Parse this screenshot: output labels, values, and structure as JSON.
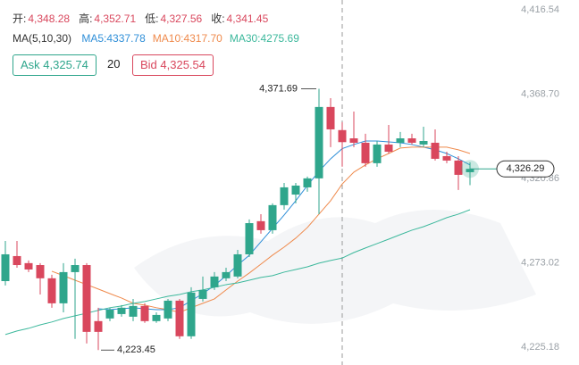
{
  "chart_data": {
    "type": "candlestick",
    "ohlc_header": [
      {
        "label": "开:",
        "value": "4,348.28"
      },
      {
        "label": "高:",
        "value": "4,352.71"
      },
      {
        "label": "低:",
        "value": "4,327.56"
      },
      {
        "label": "收:",
        "value": "4,341.45"
      }
    ],
    "ma_title": "MA(5,10,30)",
    "ask": "Ask 4,325.74",
    "quantity": "20",
    "bid": "Bid 4,325.54",
    "up_color": "#2fa68c",
    "down_color": "#d9475d",
    "candles": {
      "open": [
        4262.6,
        4276.8,
        4272.8,
        4271.7,
        4264.2,
        4250.0,
        4267.7,
        4271.7,
        4239.9,
        4241.4,
        4243.9,
        4242.4,
        4248.5,
        4239.9,
        4241.4,
        4251.5,
        4231.3,
        4252.5,
        4259.1,
        4264.2,
        4265.2,
        4277.8,
        4296.6,
        4291.5,
        4305.7,
        4311.7,
        4315.8,
        4320.9,
        4361.4,
        4348.28,
        4343.6,
        4341.1,
        4329.5,
        4340.1,
        4341.1,
        4343.6,
        4340.1,
        4341.1,
        4333.5,
        4331.0,
        4324.4
      ],
      "high": [
        4285.4,
        4285.4,
        4274.3,
        4272.8,
        4266.2,
        4272.8,
        4275.3,
        4272.8,
        4247.5,
        4247.5,
        4249.0,
        4252.5,
        4250.0,
        4244.9,
        4252.5,
        4252.5,
        4259.1,
        4265.2,
        4267.7,
        4270.2,
        4280.3,
        4297.6,
        4300.6,
        4306.7,
        4318.3,
        4318.3,
        4321.9,
        4371.69,
        4366.4,
        4352.71,
        4358.8,
        4346.2,
        4342.1,
        4351.2,
        4347.2,
        4346.2,
        4350.2,
        4348.7,
        4336.0,
        4333.5,
        4330.0
      ],
      "low": [
        4260.1,
        4270.2,
        4267.7,
        4255.0,
        4247.5,
        4244.9,
        4229.8,
        4227.2,
        4223.45,
        4239.9,
        4242.4,
        4239.9,
        4238.9,
        4238.9,
        4239.9,
        4229.8,
        4229.8,
        4251.0,
        4257.6,
        4262.6,
        4264.2,
        4276.3,
        4289.5,
        4289.5,
        4303.2,
        4306.7,
        4313.3,
        4300.6,
        4338.6,
        4327.56,
        4338.6,
        4327.5,
        4327.5,
        4335.0,
        4338.6,
        4340.1,
        4338.6,
        4331.0,
        4329.5,
        4314.3,
        4317.0
      ],
      "close": [
        4277.8,
        4271.7,
        4269.2,
        4264.2,
        4250.0,
        4267.7,
        4271.7,
        4233.8,
        4233.8,
        4246.4,
        4247.5,
        4248.5,
        4239.9,
        4243.4,
        4251.5,
        4231.3,
        4256.1,
        4257.6,
        4265.2,
        4267.7,
        4277.8,
        4295.5,
        4291.5,
        4305.7,
        4315.8,
        4316.8,
        4320.9,
        4361.4,
        4348.7,
        4341.45,
        4341.1,
        4329.5,
        4340.1,
        4336.0,
        4343.6,
        4341.1,
        4342.1,
        4332.0,
        4331.0,
        4322.9,
        4326.29
      ]
    },
    "series": [
      {
        "name": "MA5:4337.78",
        "color": "#2f8fd8",
        "values": [
          null,
          null,
          null,
          null,
          null,
          null,
          null,
          null,
          4246.9,
          4246.4,
          4246.9,
          4247.5,
          4246.9,
          4246.4,
          4246.4,
          4247.5,
          4251.5,
          4255.5,
          4260.1,
          4265.7,
          4271.7,
          4277.3,
          4284.9,
          4292.5,
          4300.1,
          4308.2,
          4316.8,
          4324.9,
          4332.0,
          4337.78,
          4340.1,
          4342.1,
          4342.1,
          4341.6,
          4341.1,
          4340.1,
          4338.6,
          4337.1,
          4335.0,
          4332.0,
          4328.5
        ]
      },
      {
        "name": "MA10:4317.70",
        "color": "#ef8a4c",
        "values": [
          null,
          null,
          null,
          null,
          4268.2,
          4265.7,
          4263.1,
          4260.6,
          4258.1,
          4255.5,
          4253.0,
          4250.0,
          4249.0,
          4247.5,
          4246.4,
          4244.9,
          4247.5,
          4250.0,
          4252.5,
          4257.6,
          4262.6,
          4267.2,
          4272.2,
          4277.3,
          4281.9,
          4287.0,
          4293.0,
          4300.6,
          4308.2,
          4317.7,
          4324.4,
          4328.5,
          4332.0,
          4335.0,
          4338.1,
          4338.6,
          4338.6,
          4338.6,
          4338.6,
          4337.1,
          4335.0
        ]
      },
      {
        "name": "MA30:4275.69",
        "color": "#3cb89c",
        "values": [
          4232.3,
          4234.3,
          4235.8,
          4237.8,
          4239.4,
          4241.4,
          4242.9,
          4244.4,
          4246.0,
          4247.5,
          4248.5,
          4250.0,
          4251.0,
          4252.5,
          4254.0,
          4255.0,
          4256.6,
          4257.6,
          4259.1,
          4260.6,
          4261.6,
          4263.1,
          4264.7,
          4265.7,
          4267.7,
          4269.2,
          4270.7,
          4272.8,
          4274.3,
          4275.69,
          4278.8,
          4281.4,
          4283.9,
          4286.4,
          4289.0,
          4291.5,
          4293.5,
          4296.0,
          4298.6,
          4300.6,
          4303.1
        ]
      }
    ],
    "high_label": {
      "value": 4371.69,
      "label": "4,371.69"
    },
    "low_label": {
      "value": 4223.45,
      "label": "4,223.45"
    },
    "last_price": {
      "value": 4326.29,
      "label": "4,326.29"
    },
    "ylim": [
      4215.0,
      4422.1
    ],
    "yticks": [
      {
        "value": 4416.54,
        "label": "4,416.54"
      },
      {
        "value": 4368.7,
        "label": "4,368.70"
      },
      {
        "value": 4320.86,
        "label": "4,320.86"
      },
      {
        "value": 4273.02,
        "label": "4,273.02"
      },
      {
        "value": 4225.18,
        "label": "4,225.18"
      }
    ]
  }
}
